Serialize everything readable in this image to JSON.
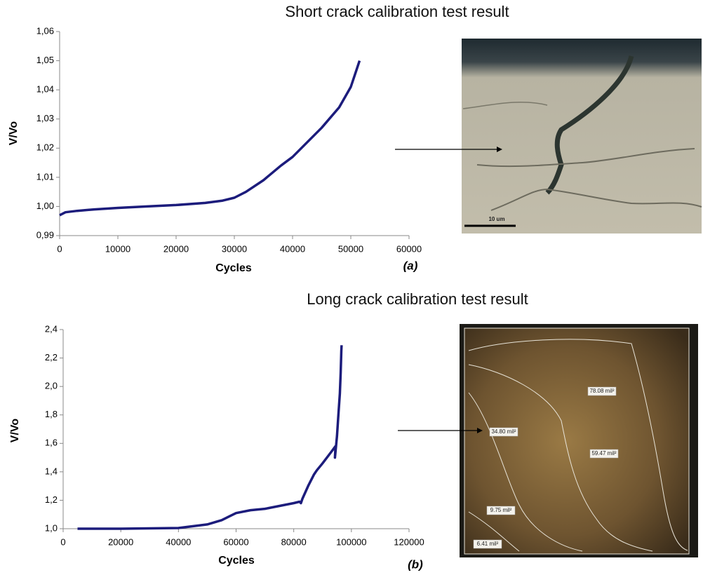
{
  "chart_data": [
    {
      "type": "line",
      "title": "Short crack calibration test result",
      "x_label": "Cycles",
      "y_label": "V/Vo",
      "panel_label": "(a)",
      "x": [
        0,
        1000,
        3000,
        6000,
        10000,
        15000,
        20000,
        25000,
        28000,
        30000,
        32000,
        35000,
        38000,
        40000,
        43000,
        45000,
        48000,
        50000,
        51500
      ],
      "values": [
        0.997,
        0.998,
        0.9985,
        0.999,
        0.9995,
        1.0,
        1.0005,
        1.0012,
        1.002,
        1.003,
        1.005,
        1.009,
        1.014,
        1.017,
        1.023,
        1.027,
        1.034,
        1.041,
        1.05
      ],
      "color": "#1c1c7c",
      "xlim": [
        0,
        60000
      ],
      "xticks": [
        0,
        10000,
        20000,
        30000,
        40000,
        50000,
        60000
      ],
      "ylim": [
        0.99,
        1.06
      ],
      "yticks": [
        {
          "value": 0.99,
          "label": "0,99"
        },
        {
          "value": 1.0,
          "label": "1,00"
        },
        {
          "value": 1.01,
          "label": "1,01"
        },
        {
          "value": 1.02,
          "label": "1,02"
        },
        {
          "value": 1.03,
          "label": "1,03"
        },
        {
          "value": 1.04,
          "label": "1,04"
        },
        {
          "value": 1.05,
          "label": "1,05"
        },
        {
          "value": 1.06,
          "label": "1,06"
        }
      ],
      "annotations": [
        "10 um"
      ]
    },
    {
      "type": "line",
      "title": "Long crack calibration test result",
      "x_label": "Cycles",
      "y_label": "V/Vo",
      "panel_label": "(b)",
      "x": [
        5000,
        20000,
        40000,
        50000,
        55000,
        58000,
        60000,
        65000,
        70000,
        80000,
        82000,
        82500,
        83000,
        85000,
        87000,
        88000,
        90000,
        93000,
        94500,
        94300,
        95000,
        95500,
        96000,
        96300,
        96500,
        96600
      ],
      "values": [
        1.0,
        1.0,
        1.005,
        1.03,
        1.06,
        1.09,
        1.11,
        1.13,
        1.14,
        1.18,
        1.19,
        1.18,
        1.21,
        1.3,
        1.38,
        1.41,
        1.46,
        1.54,
        1.58,
        1.5,
        1.65,
        1.8,
        1.95,
        2.1,
        2.25,
        2.29
      ],
      "color": "#1c1c7c",
      "xlim": [
        0,
        120000
      ],
      "xticks": [
        0,
        20000,
        40000,
        60000,
        80000,
        100000,
        120000
      ],
      "ylim": [
        1.0,
        2.4
      ],
      "yticks": [
        {
          "value": 1.0,
          "label": "1,0"
        },
        {
          "value": 1.2,
          "label": "1,2"
        },
        {
          "value": 1.4,
          "label": "1,4"
        },
        {
          "value": 1.6,
          "label": "1,6"
        },
        {
          "value": 1.8,
          "label": "1,8"
        },
        {
          "value": 2.0,
          "label": "2,0"
        },
        {
          "value": 2.2,
          "label": "2,2"
        },
        {
          "value": 2.4,
          "label": "2,4"
        }
      ],
      "annotations": [
        "78.08 mil²",
        "34.80 mil²",
        "59.47 mil²",
        "9.75 mil²",
        "6.41 mil²"
      ]
    }
  ]
}
